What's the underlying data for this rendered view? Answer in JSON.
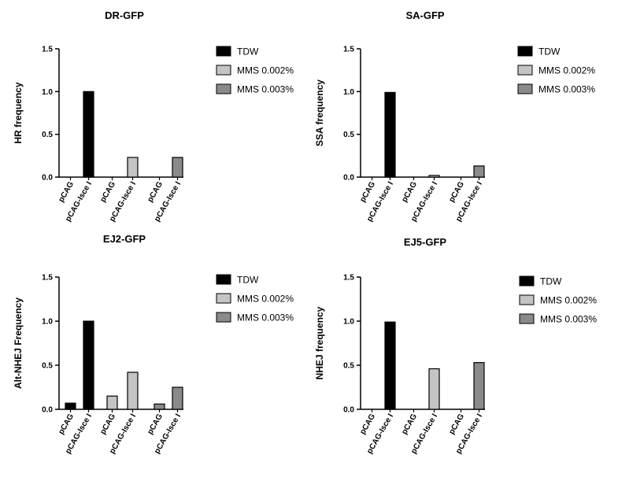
{
  "colors": {
    "TDW": "#000000",
    "MMS 0.002%": "#c4c4c4",
    "MMS 0.003%": "#8a8a8a"
  },
  "chart_data": [
    {
      "type": "bar",
      "title": "DR-GFP",
      "ylabel": "HR frequency",
      "ylim": [
        0,
        1.5
      ],
      "yticks": [
        "0.0",
        "0.5",
        "1.0",
        "1.5"
      ],
      "legend": [
        "TDW",
        "MMS 0.002%",
        "MMS 0.003%"
      ],
      "groups": [
        "TDW",
        "MMS 0.002%",
        "MMS 0.003%"
      ],
      "categories": [
        "pCAG",
        "pCAG-Isce I",
        "pCAG",
        "pCAG-Isce I",
        "pCAG",
        "pCAG-Isce I"
      ],
      "values": [
        0.0,
        1.0,
        0.0,
        0.23,
        0.0,
        0.23
      ]
    },
    {
      "type": "bar",
      "title": "SA-GFP",
      "ylabel": "SSA frequency",
      "ylim": [
        0,
        1.5
      ],
      "yticks": [
        "0.0",
        "0.5",
        "1.0",
        "1.5"
      ],
      "legend": [
        "TDW",
        "MMS 0.002%",
        "MMS 0.003%"
      ],
      "groups": [
        "TDW",
        "MMS 0.002%",
        "MMS 0.003%"
      ],
      "categories": [
        "pCAG",
        "pCAG-Isce I",
        "pCAG",
        "pCAG-Isce I",
        "pCAG",
        "pCAG-Isce I"
      ],
      "values": [
        0.0,
        0.99,
        0.0,
        0.02,
        0.0,
        0.13
      ]
    },
    {
      "type": "bar",
      "title": "EJ2-GFP",
      "ylabel": "Alt-NHEJ Frequency",
      "ylim": [
        0,
        1.5
      ],
      "yticks": [
        "0.0",
        "0.5",
        "1.0",
        "1.5"
      ],
      "legend": [
        "TDW",
        "MMS 0.002%",
        "MMS 0.003%"
      ],
      "groups": [
        "TDW",
        "MMS 0.002%",
        "MMS 0.003%"
      ],
      "categories": [
        "pCAG",
        "pCAG-Isce I",
        "pCAG",
        "pCAG-Isce I",
        "pCAG",
        "pCAG-Isce I"
      ],
      "values": [
        0.07,
        1.0,
        0.15,
        0.42,
        0.06,
        0.25
      ]
    },
    {
      "type": "bar",
      "title": "EJ5-GFP",
      "ylabel": "NHEJ frequency",
      "ylim": [
        0,
        1.5
      ],
      "yticks": [
        "0.0",
        "0.5",
        "1.0",
        "1.5"
      ],
      "legend": [
        "TDW",
        "MMS 0.002%",
        "MMS 0.003%"
      ],
      "groups": [
        "TDW",
        "MMS 0.002%",
        "MMS 0.003%"
      ],
      "categories": [
        "pCAG",
        "pCAG-Isce I",
        "pCAG",
        "pCAG-Isce I",
        "pCAG",
        "pCAG-Isce I"
      ],
      "values": [
        0.0,
        0.99,
        0.0,
        0.46,
        0.0,
        0.53
      ]
    }
  ]
}
